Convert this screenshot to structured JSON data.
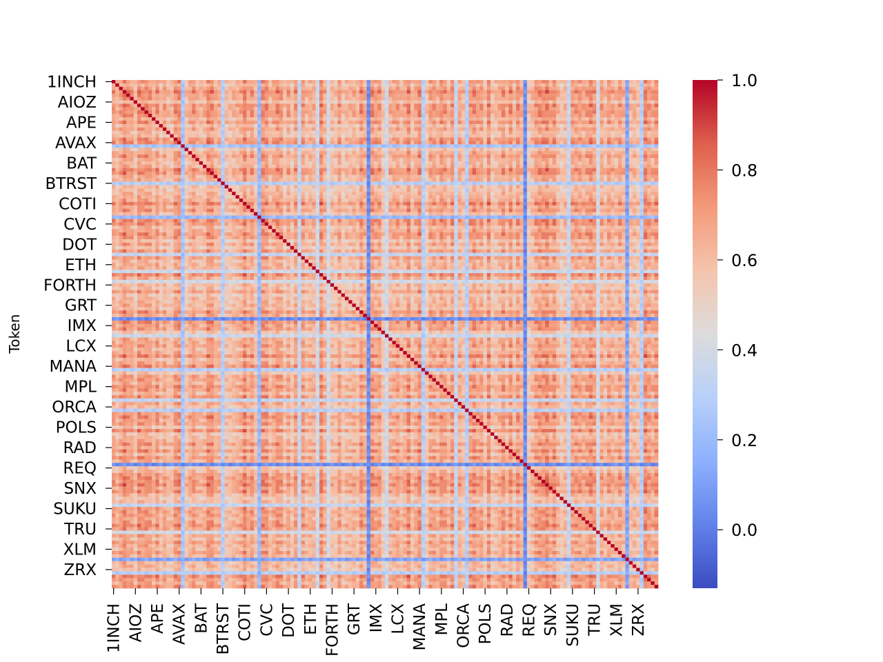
{
  "chart_data": {
    "type": "heatmap",
    "title": "",
    "xlabel": "",
    "ylabel": "Token",
    "labels": [
      "1INCH",
      "AIOZ",
      "APE",
      "AVAX",
      "BAT",
      "BTRST",
      "COTI",
      "CVC",
      "DOT",
      "ETH",
      "FORTH",
      "GRT",
      "IMX",
      "LCX",
      "MANA",
      "MPL",
      "ORCA",
      "POLS",
      "RAD",
      "REQ",
      "SNX",
      "SUKU",
      "TRU",
      "XLM",
      "ZRX"
    ],
    "grid_size": 150,
    "colormap": "coolwarm",
    "colorbar": {
      "min": -0.13,
      "max": 1.0,
      "ticks": [
        0.0,
        0.2,
        0.4,
        0.6,
        0.8,
        1.0
      ],
      "tick_labels": [
        "0.0",
        "0.2",
        "0.4",
        "0.6",
        "0.8",
        "1.0"
      ]
    },
    "diagonal_value": 1.0,
    "typical_off_diagonal_range": [
      0.45,
      0.85
    ],
    "low_correlation_tokens": [
      {
        "index": 70,
        "typical_value": 0.05
      },
      {
        "index": 113,
        "typical_value": 0.05
      },
      {
        "index": 141,
        "typical_value": 0.12
      },
      {
        "index": 19,
        "typical_value": 0.25
      },
      {
        "index": 40,
        "typical_value": 0.2
      },
      {
        "index": 30,
        "typical_value": 0.3
      },
      {
        "index": 51,
        "typical_value": 0.35
      },
      {
        "index": 56,
        "typical_value": 0.38
      },
      {
        "index": 59,
        "typical_value": 0.4
      },
      {
        "index": 85,
        "typical_value": 0.3
      },
      {
        "index": 94,
        "typical_value": 0.35
      },
      {
        "index": 97,
        "typical_value": 0.3
      },
      {
        "index": 75,
        "typical_value": 0.38
      },
      {
        "index": 125,
        "typical_value": 0.35
      },
      {
        "index": 133,
        "typical_value": 0.4
      },
      {
        "index": 145,
        "typical_value": 0.3
      }
    ]
  }
}
